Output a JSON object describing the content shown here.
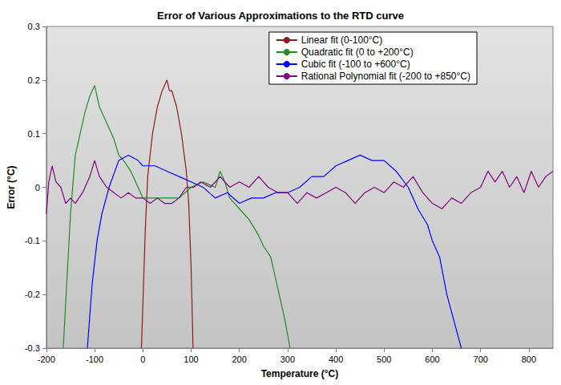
{
  "chart_data": {
    "type": "line",
    "title": "Error of Various Approximations to the RTD curve",
    "x_label": "Temperature (°C)",
    "y_label": "Error (°C)",
    "xlim": [
      -200,
      850
    ],
    "xticks": [
      -200,
      -100,
      0,
      100,
      200,
      300,
      400,
      500,
      600,
      700,
      800
    ],
    "ylim": [
      -0.3,
      0.3
    ],
    "yticks": [
      -0.3,
      -0.2,
      -0.1,
      0,
      0.1,
      0.2,
      0.3
    ],
    "grid": false,
    "legend": "top-right",
    "series": [
      {
        "name": "Linear fit (0-100°C)",
        "color": "#8b1a1a",
        "x": [
          -3,
          0,
          5,
          10,
          20,
          30,
          40,
          45,
          50,
          55,
          60,
          70,
          80,
          90,
          95,
          100,
          104
        ],
        "values": [
          -0.3,
          -0.22,
          -0.08,
          0.02,
          0.1,
          0.15,
          0.18,
          0.19,
          0.2,
          0.18,
          0.18,
          0.15,
          0.1,
          0.03,
          -0.03,
          -0.15,
          -0.3
        ]
      },
      {
        "name": "Quadratic fit (0 to +200°C)",
        "color": "#228b22",
        "x": [
          -165,
          -150,
          -140,
          -130,
          -120,
          -110,
          -100,
          -90,
          -80,
          -70,
          -60,
          -50,
          -40,
          -25,
          -10,
          0,
          25,
          50,
          75,
          100,
          125,
          150,
          160,
          170,
          180,
          200,
          220,
          240,
          250,
          265,
          280,
          295,
          305
        ],
        "values": [
          -0.3,
          -0.05,
          0.06,
          0.1,
          0.14,
          0.17,
          0.19,
          0.15,
          0.13,
          0.11,
          0.09,
          0.06,
          0.05,
          0.03,
          0.0,
          -0.02,
          -0.02,
          -0.02,
          -0.02,
          0.0,
          0.01,
          0.0,
          0.03,
          0.01,
          -0.02,
          -0.04,
          -0.06,
          -0.09,
          -0.11,
          -0.13,
          -0.19,
          -0.25,
          -0.3
        ]
      },
      {
        "name": "Cubic fit (-100 to +600°C)",
        "color": "#0000ff",
        "x": [
          -115,
          -105,
          -95,
          -85,
          -70,
          -50,
          -30,
          -10,
          0,
          25,
          50,
          75,
          100,
          125,
          150,
          175,
          200,
          225,
          250,
          275,
          300,
          325,
          350,
          375,
          400,
          425,
          450,
          475,
          500,
          525,
          550,
          570,
          590,
          600,
          615,
          630,
          645,
          660
        ],
        "values": [
          -0.3,
          -0.18,
          -0.1,
          -0.05,
          0.0,
          0.05,
          0.06,
          0.05,
          0.04,
          0.04,
          0.03,
          0.02,
          0.01,
          0.0,
          -0.02,
          -0.01,
          -0.03,
          -0.02,
          -0.02,
          -0.01,
          -0.01,
          0.0,
          0.02,
          0.02,
          0.04,
          0.05,
          0.06,
          0.05,
          0.05,
          0.03,
          0.0,
          -0.04,
          -0.07,
          -0.1,
          -0.13,
          -0.2,
          -0.25,
          -0.3
        ]
      },
      {
        "name": "Rational Polynomial fit (-200 to +850°C)",
        "color": "#800080",
        "x": [
          -200,
          -195,
          -188,
          -180,
          -170,
          -160,
          -150,
          -140,
          -125,
          -110,
          -100,
          -90,
          -75,
          -60,
          -45,
          -30,
          -15,
          0,
          15,
          30,
          45,
          60,
          75,
          90,
          105,
          120,
          140,
          160,
          180,
          200,
          220,
          240,
          260,
          280,
          300,
          320,
          340,
          360,
          380,
          400,
          420,
          440,
          460,
          480,
          500,
          520,
          540,
          560,
          580,
          600,
          620,
          640,
          660,
          680,
          700,
          715,
          730,
          745,
          760,
          775,
          790,
          805,
          820,
          835,
          850
        ],
        "values": [
          -0.05,
          0.01,
          0.04,
          0.01,
          0.0,
          -0.03,
          -0.02,
          -0.03,
          -0.01,
          0.02,
          0.05,
          0.02,
          0.0,
          -0.01,
          -0.02,
          -0.01,
          -0.02,
          -0.02,
          -0.03,
          -0.02,
          -0.03,
          -0.03,
          -0.02,
          0.0,
          0.0,
          0.01,
          0.0,
          0.02,
          0.0,
          0.01,
          0.0,
          0.02,
          0.0,
          -0.01,
          -0.01,
          -0.03,
          -0.01,
          -0.02,
          -0.01,
          0.0,
          -0.01,
          -0.03,
          -0.01,
          0.0,
          -0.01,
          0.01,
          0.0,
          0.02,
          -0.01,
          -0.03,
          -0.04,
          -0.02,
          -0.03,
          -0.01,
          0.0,
          0.03,
          0.01,
          0.03,
          0.0,
          0.02,
          -0.01,
          0.03,
          0.0,
          0.02,
          0.03
        ]
      }
    ]
  }
}
